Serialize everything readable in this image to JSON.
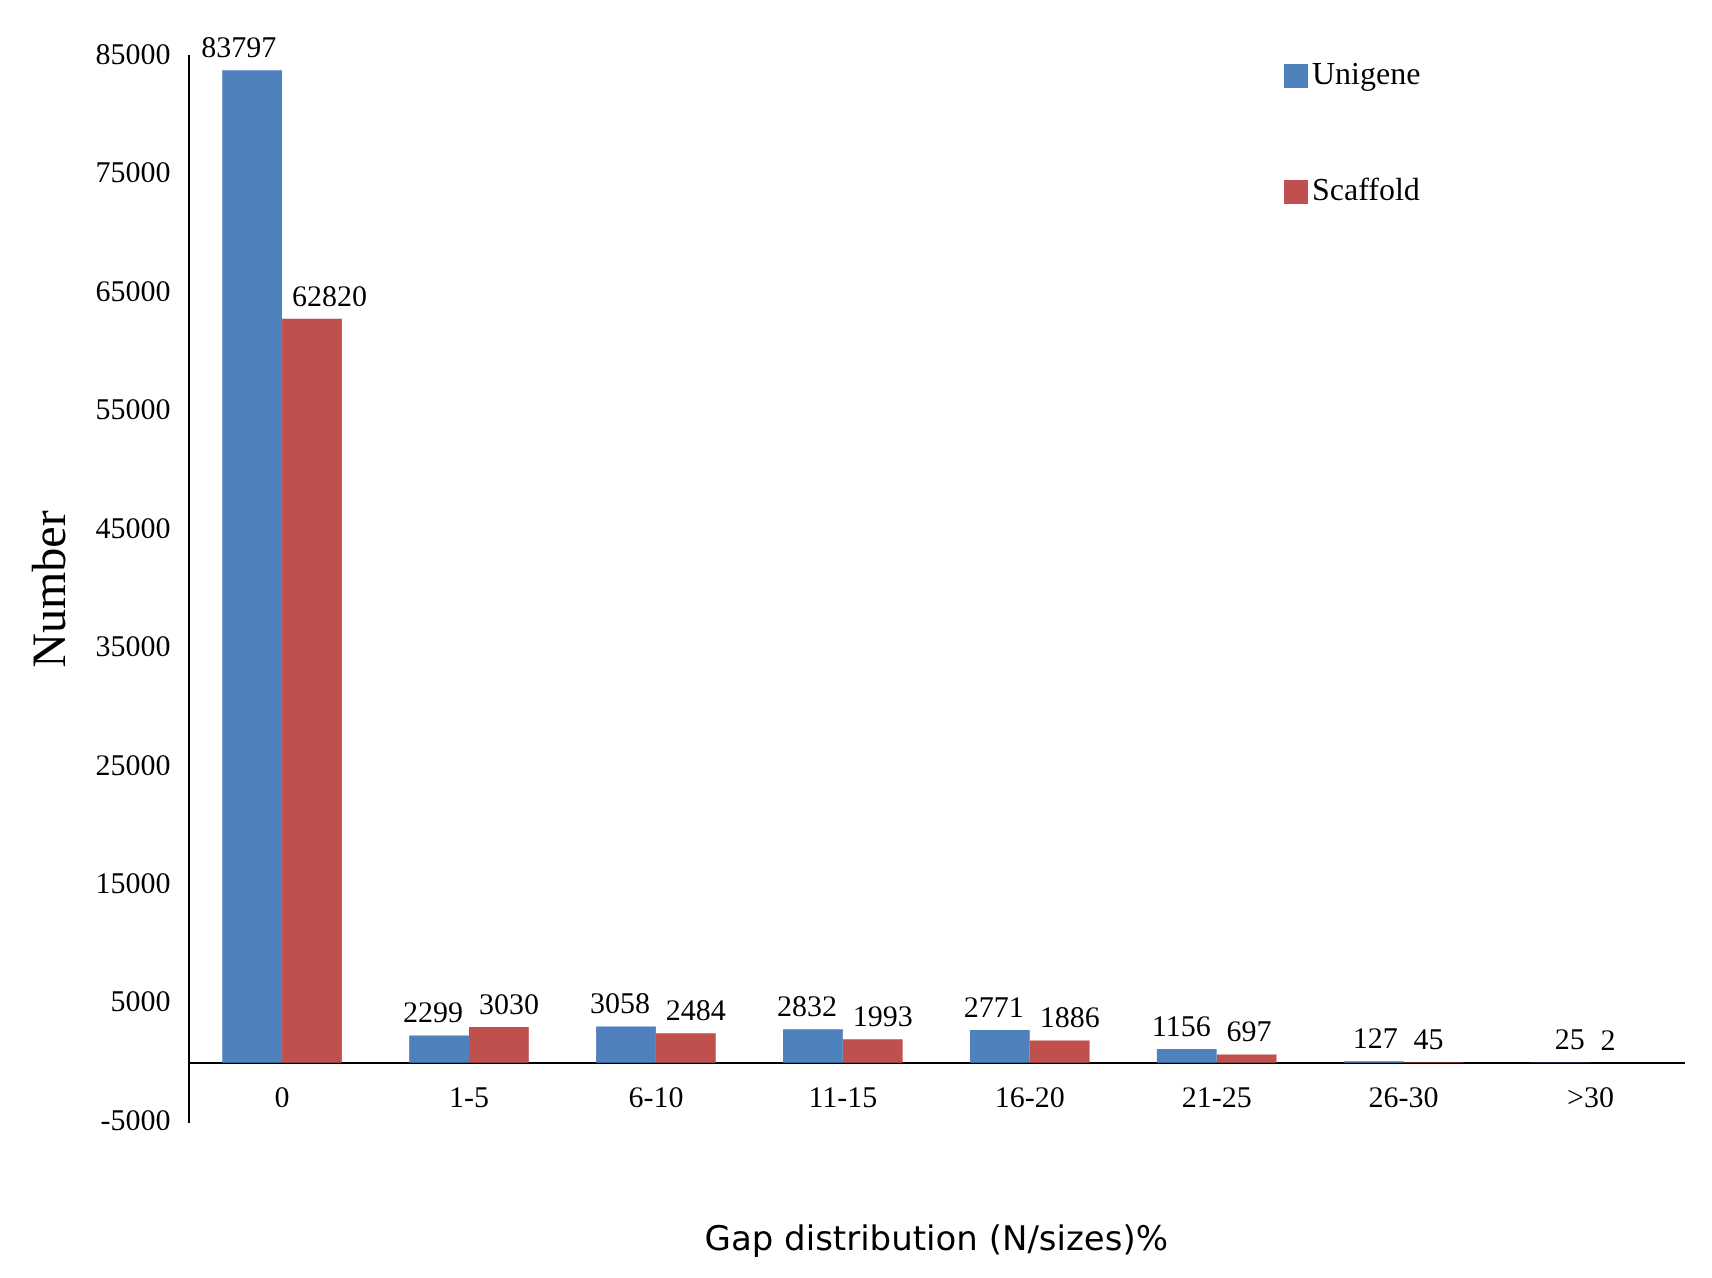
{
  "chart_data": {
    "type": "bar",
    "xlabel": "Gap distribution (N/sizes)%",
    "ylabel": "Number",
    "categories": [
      "0",
      "1-5",
      "6-10",
      "11-15",
      "16-20",
      "21-25",
      "26-30",
      ">30"
    ],
    "series": [
      {
        "name": "Unigene",
        "color": "#4f81bd",
        "values": [
          83797,
          2299,
          3058,
          2832,
          2771,
          1156,
          127,
          25
        ]
      },
      {
        "name": "Scaffold",
        "color": "#c0504d",
        "values": [
          62820,
          3030,
          2484,
          1993,
          1886,
          697,
          45,
          2
        ]
      }
    ],
    "ylim": [
      -5000,
      85000
    ],
    "yticks": [
      -5000,
      5000,
      15000,
      25000,
      35000,
      45000,
      55000,
      65000,
      75000,
      85000
    ],
    "grid": false,
    "legend": "top right",
    "data_labels": true
  }
}
